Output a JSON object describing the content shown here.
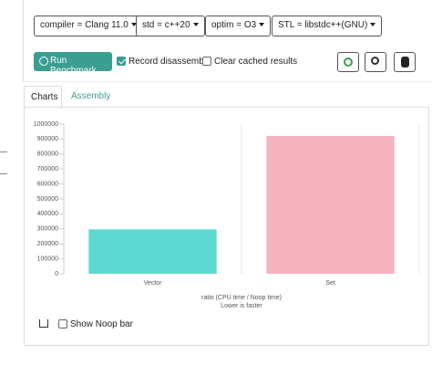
{
  "toolbar": {
    "compiler": "compiler = Clang 11.0",
    "std": "std = c++20",
    "optim": "optim = O3",
    "stl": "STL = libstdc++(GNU)",
    "run": "Run Benchmark",
    "record": "Record disassembly",
    "clear": "Clear cached results"
  },
  "tabs": [
    "Charts",
    "Assembly"
  ],
  "show_noop": "Show Noop bar",
  "chart_data": {
    "type": "bar",
    "categories": [
      "Vector",
      "Set"
    ],
    "values": [
      297000,
      921000
    ],
    "colors": [
      "#5ed9d0",
      "#f5b3c0"
    ],
    "xlabel": "ratio (CPU time / Noop time)",
    "subtitle": "Lower is faster",
    "ylim": [
      0,
      1000000
    ],
    "yticks": [
      0,
      100000,
      200000,
      300000,
      400000,
      500000,
      600000,
      700000,
      800000,
      900000,
      1000000
    ],
    "grid": false
  }
}
